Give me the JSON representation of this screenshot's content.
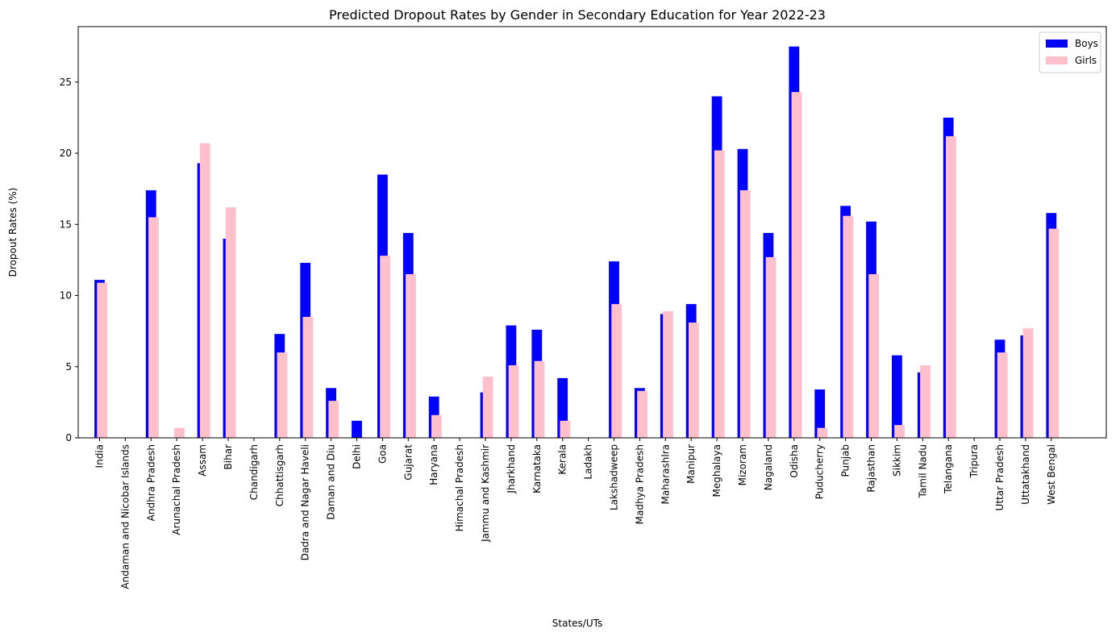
{
  "chart_data": {
    "type": "bar",
    "title": "Predicted Dropout Rates by Gender in Secondary Education for Year 2022-23",
    "xlabel": "States/UTs",
    "ylabel": "Dropout Rates (%)",
    "ylim": [
      0,
      28.9
    ],
    "yticks": [
      0,
      5,
      10,
      15,
      20,
      25
    ],
    "grid": false,
    "legend_position": "top-right",
    "categories": [
      "India",
      "Andaman and Nicobar Islands",
      "Andhra Pradesh",
      "Arunachal Pradesh",
      "Assam",
      "Bihar",
      "Chandigarh",
      "Chhattisgarh",
      "Dadra and Nagar Haveli",
      "Daman and Diu",
      "Delhi",
      "Goa",
      "Gujarat",
      "Haryana",
      "Himachal Pradesh",
      "Jammu and Kashmir",
      "Jharkhand",
      "Karnataka",
      "Kerala",
      "Ladakh",
      "Lakshadweep",
      "Madhya Pradesh",
      "Maharashlra",
      "Manipur",
      "Meghalaya",
      "Mizoram",
      "Nagaland",
      "Odisha",
      "Puducherry",
      "Punjab",
      "Rajasthan",
      "Sikkim",
      "Tamil Nadu",
      "Telangana",
      "Tripura",
      "Uttar Pradesh",
      "Uttatakhand",
      "West Bengal"
    ],
    "series": [
      {
        "name": "Boys",
        "color": "#0000ff",
        "values": [
          11.1,
          0,
          17.4,
          0,
          19.3,
          14.0,
          0,
          7.3,
          12.3,
          3.5,
          1.2,
          18.5,
          14.4,
          2.9,
          0,
          3.2,
          7.9,
          7.6,
          4.2,
          0,
          12.4,
          3.5,
          8.7,
          9.4,
          24.0,
          20.3,
          14.4,
          27.5,
          3.4,
          16.3,
          15.2,
          5.8,
          4.6,
          22.5,
          0,
          6.9,
          7.2,
          15.8
        ]
      },
      {
        "name": "Girls",
        "color": "#ffc0cb",
        "values": [
          10.9,
          0,
          15.5,
          0.7,
          20.7,
          16.2,
          0,
          6.0,
          8.5,
          2.6,
          0,
          12.8,
          11.5,
          1.6,
          0,
          4.3,
          5.1,
          5.4,
          1.2,
          0,
          9.4,
          3.3,
          8.9,
          8.1,
          20.2,
          17.4,
          12.7,
          24.3,
          0.7,
          15.6,
          11.5,
          0.9,
          5.1,
          21.2,
          0,
          6.0,
          7.7,
          14.7
        ]
      }
    ]
  }
}
